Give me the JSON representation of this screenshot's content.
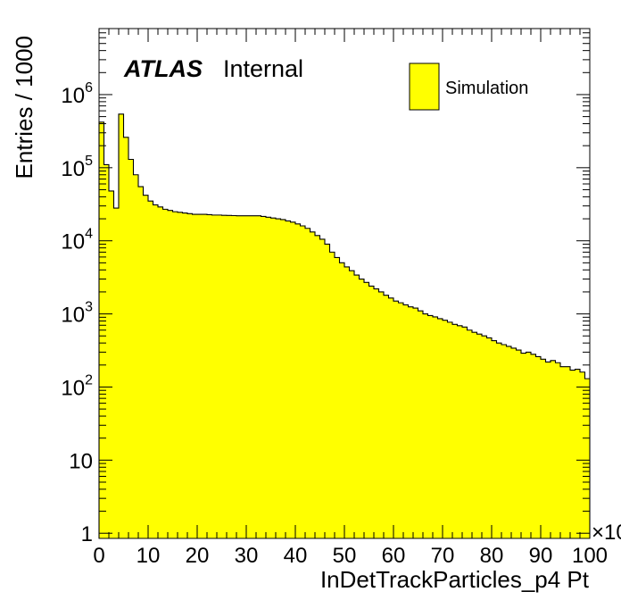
{
  "chart_data": {
    "type": "histogram",
    "title": "",
    "xlabel": "InDetTrackParticles_p4 Pt",
    "ylabel": "Entries / 1000",
    "x_multiplier": "×10",
    "xlim": [
      0,
      100
    ],
    "ylim": [
      0.85,
      8000000
    ],
    "y_scale": "log",
    "x_ticks": [
      0,
      10,
      20,
      30,
      40,
      50,
      60,
      70,
      80,
      90,
      100
    ],
    "y_ticks": [
      {
        "value": 1,
        "label": "1"
      },
      {
        "value": 10,
        "label": "10"
      },
      {
        "value": 100,
        "label": "10",
        "exp": "2"
      },
      {
        "value": 1000,
        "label": "10",
        "exp": "3"
      },
      {
        "value": 10000,
        "label": "10",
        "exp": "4"
      },
      {
        "value": 100000,
        "label": "10",
        "exp": "5"
      },
      {
        "value": 1000000,
        "label": "10",
        "exp": "6"
      }
    ],
    "atlas_label": "ATLAS",
    "atlas_status": "Internal",
    "legend_position": "top-right",
    "series": [
      {
        "name": "Simulation",
        "color": "#ffff00",
        "bin_width": 1,
        "bin_start": 0,
        "values": [
          420000,
          110000,
          48000,
          28000,
          540000,
          260000,
          130000,
          80000,
          55000,
          42000,
          35000,
          31000,
          29000,
          27000,
          26000,
          25000,
          24500,
          24000,
          23500,
          23000,
          23000,
          23000,
          22800,
          22500,
          22500,
          22300,
          22200,
          22100,
          22000,
          22000,
          22000,
          22000,
          22000,
          21500,
          21000,
          20500,
          20000,
          19500,
          18700,
          18000,
          17000,
          16000,
          14800,
          13200,
          11800,
          10500,
          9000,
          7000,
          5900,
          5000,
          4400,
          3900,
          3400,
          3000,
          2700,
          2400,
          2200,
          2000,
          1800,
          1650,
          1500,
          1420,
          1330,
          1250,
          1200,
          1100,
          1000,
          950,
          910,
          860,
          820,
          770,
          720,
          690,
          660,
          600,
          560,
          530,
          500,
          470,
          430,
          400,
          380,
          360,
          340,
          320,
          290,
          300,
          280,
          260,
          240,
          220,
          230,
          215,
          190,
          190,
          170,
          175,
          160,
          130
        ]
      }
    ]
  }
}
